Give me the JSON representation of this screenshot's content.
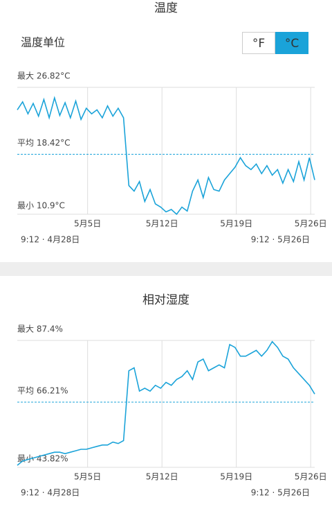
{
  "header": {
    "title": "温度"
  },
  "settings": {
    "label": "温度单位",
    "options": [
      "°F",
      "°C"
    ],
    "selected": 1
  },
  "chart_data": [
    {
      "type": "line",
      "color": "#1aa3d9",
      "x": [
        0,
        0.5,
        1,
        1.5,
        2,
        2.5,
        3,
        3.5,
        4,
        4.5,
        5,
        5.5,
        6,
        6.5,
        7,
        7.5,
        8,
        8.5,
        9,
        9.5,
        10,
        10.5,
        11,
        11.5,
        12,
        12.5,
        13,
        13.5,
        14,
        14.5,
        15,
        15.5,
        16,
        16.5,
        17,
        17.5,
        18,
        18.5,
        19,
        19.5,
        20,
        20.5,
        21,
        21.5,
        22,
        22.5,
        23,
        23.5,
        24,
        24.5,
        25,
        25.5,
        26,
        26.5,
        27,
        27.5,
        28
      ],
      "values": [
        24.0,
        25.0,
        23.5,
        24.8,
        23.2,
        25.3,
        23.0,
        25.5,
        23.3,
        24.9,
        23.0,
        25.1,
        22.8,
        24.2,
        23.5,
        24.0,
        23.0,
        24.5,
        23.2,
        24.2,
        23.0,
        14.5,
        13.8,
        15.0,
        12.5,
        14.0,
        12.2,
        11.8,
        11.2,
        11.5,
        10.9,
        11.8,
        11.3,
        13.8,
        15.2,
        13.0,
        15.5,
        14.0,
        13.8,
        15.2,
        16.0,
        16.8,
        18.0,
        17.0,
        16.5,
        17.2,
        16.0,
        17.0,
        15.8,
        16.5,
        14.8,
        16.5,
        15.0,
        17.5,
        15.2,
        18.0,
        15.2
      ],
      "xlim": [
        0,
        28
      ],
      "xticks": [
        {
          "value": 6.62,
          "label": "5月5日"
        },
        {
          "value": 13.62,
          "label": "5月12日"
        },
        {
          "value": 20.62,
          "label": "5月19日"
        },
        {
          "value": 27.62,
          "label": "5月26日"
        }
      ],
      "ylim": [
        10.9,
        26.82
      ],
      "max_label": "最大 26.82°C",
      "min_label": "最小 10.9°C",
      "reference_line": {
        "value": 18.42,
        "label": "平均 18.42°C"
      },
      "start_label": "9:12 · 4月28日",
      "end_label": "9:12 · 5月26日"
    },
    {
      "type": "line",
      "title": "相对湿度",
      "color": "#1aa3d9",
      "x": [
        0,
        0.5,
        1,
        1.5,
        2,
        2.5,
        3,
        3.5,
        4,
        4.5,
        5,
        5.5,
        6,
        6.5,
        7,
        7.5,
        8,
        8.5,
        9,
        9.5,
        10,
        10.5,
        11,
        11.5,
        12,
        12.5,
        13,
        13.5,
        14,
        14.5,
        15,
        15.5,
        16,
        16.5,
        17,
        17.5,
        18,
        18.5,
        19,
        19.5,
        20,
        20.5,
        21,
        21.5,
        22,
        22.5,
        23,
        23.5,
        24,
        24.5,
        25,
        25.5,
        26,
        26.5,
        27,
        27.5,
        28
      ],
      "values": [
        44.5,
        46,
        46.5,
        47,
        47.5,
        48,
        48.5,
        49,
        49,
        48.5,
        49,
        49.5,
        50,
        50,
        50.5,
        51,
        51.5,
        51.5,
        52.5,
        52,
        53,
        77,
        78,
        70,
        71,
        70,
        72,
        71,
        73,
        72,
        74,
        75,
        77,
        74,
        80,
        81,
        77,
        78,
        79,
        78,
        86,
        85,
        82,
        82,
        83,
        84,
        82,
        84,
        87,
        85,
        82,
        81,
        78,
        76,
        74,
        72,
        69
      ],
      "xlim": [
        0,
        28
      ],
      "xticks": [
        {
          "value": 6.62,
          "label": "5月5日"
        },
        {
          "value": 13.62,
          "label": "5月12日"
        },
        {
          "value": 20.62,
          "label": "5月19日"
        },
        {
          "value": 27.62,
          "label": "5月26日"
        }
      ],
      "ylim": [
        43.82,
        87.4
      ],
      "max_label": "最大 87.4%",
      "min_label": "最小 43.82%",
      "reference_line": {
        "value": 66.21,
        "label": "平均 66.21%"
      },
      "start_label": "9:12 · 4月28日",
      "end_label": "9:12 · 5月26日"
    }
  ]
}
